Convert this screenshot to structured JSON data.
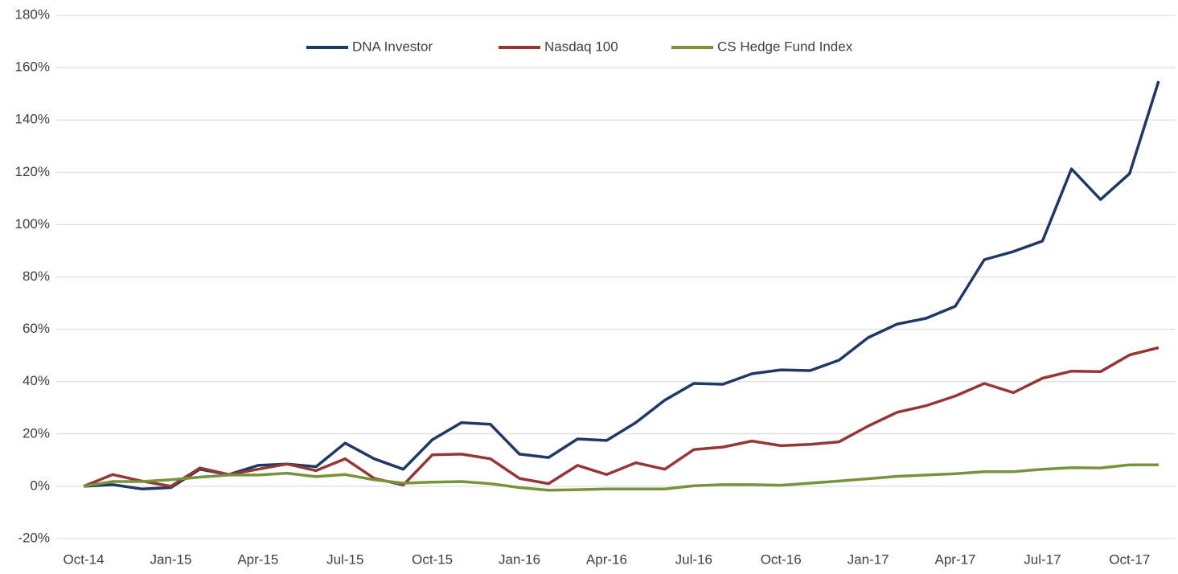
{
  "chart_data": {
    "type": "line",
    "categories": [
      "Oct-14",
      null,
      null,
      "Jan-15",
      null,
      null,
      "Apr-15",
      null,
      null,
      "Jul-15",
      null,
      null,
      "Oct-15",
      null,
      null,
      "Jan-16",
      null,
      null,
      "Apr-16",
      null,
      null,
      "Jul-16",
      null,
      null,
      "Oct-16",
      null,
      null,
      "Jan-17",
      null,
      null,
      "Apr-17",
      null,
      null,
      "Jul-17",
      null,
      null,
      "Oct-17",
      null
    ],
    "series": [
      {
        "name": "DNA Investor",
        "color": "#1f3864",
        "values": [
          0,
          0.6,
          -1,
          -0.5,
          6.5,
          4.5,
          8,
          8.5,
          7.5,
          16.5,
          10.5,
          6.5,
          17.8,
          24.3,
          23.7,
          12.3,
          11,
          18.1,
          17.5,
          24.3,
          32.9,
          39.3,
          39,
          43,
          44.5,
          44.2,
          48.2,
          56.8,
          62,
          64.2,
          68.8,
          86.6,
          89.7,
          93.7,
          121.3,
          109.6,
          119.5,
          154.8
        ]
      },
      {
        "name": "Nasdaq 100",
        "color": "#953735",
        "values": [
          0,
          4.5,
          2,
          0,
          7,
          4.5,
          6.5,
          8.5,
          6,
          10.5,
          3,
          0.5,
          12,
          12.3,
          10.5,
          3,
          1,
          8,
          4.5,
          9,
          6.5,
          14,
          15,
          17.3,
          15.5,
          16,
          17,
          23,
          28.3,
          30.8,
          34.5,
          39.3,
          35.8,
          41.3,
          44,
          43.8,
          50.2,
          53
        ]
      },
      {
        "name": "CS Hedge Fund Index",
        "color": "#77933c",
        "values": [
          0,
          1.8,
          1.8,
          2.5,
          3.5,
          4.3,
          4.3,
          5,
          3.7,
          4.5,
          2.5,
          1.2,
          1.6,
          1.8,
          1,
          -0.5,
          -1.5,
          -1.3,
          -1,
          -1,
          -1,
          0.2,
          0.6,
          0.6,
          0.4,
          1.2,
          2,
          2.9,
          3.8,
          4.3,
          4.8,
          5.6,
          5.6,
          6.5,
          7.1,
          7,
          8.2,
          8.2
        ]
      }
    ],
    "ylim": [
      -20,
      180
    ],
    "yticks": [
      {
        "value": -20,
        "label": "-20%"
      },
      {
        "value": 0,
        "label": "0%"
      },
      {
        "value": 20,
        "label": "20%"
      },
      {
        "value": 40,
        "label": "40%"
      },
      {
        "value": 60,
        "label": "60%"
      },
      {
        "value": 80,
        "label": "80%"
      },
      {
        "value": 100,
        "label": "100%"
      },
      {
        "value": 120,
        "label": "120%"
      },
      {
        "value": 140,
        "label": "140%"
      },
      {
        "value": 160,
        "label": "160%"
      },
      {
        "value": 180,
        "label": "180%"
      }
    ],
    "grid": true,
    "legend": "top"
  }
}
